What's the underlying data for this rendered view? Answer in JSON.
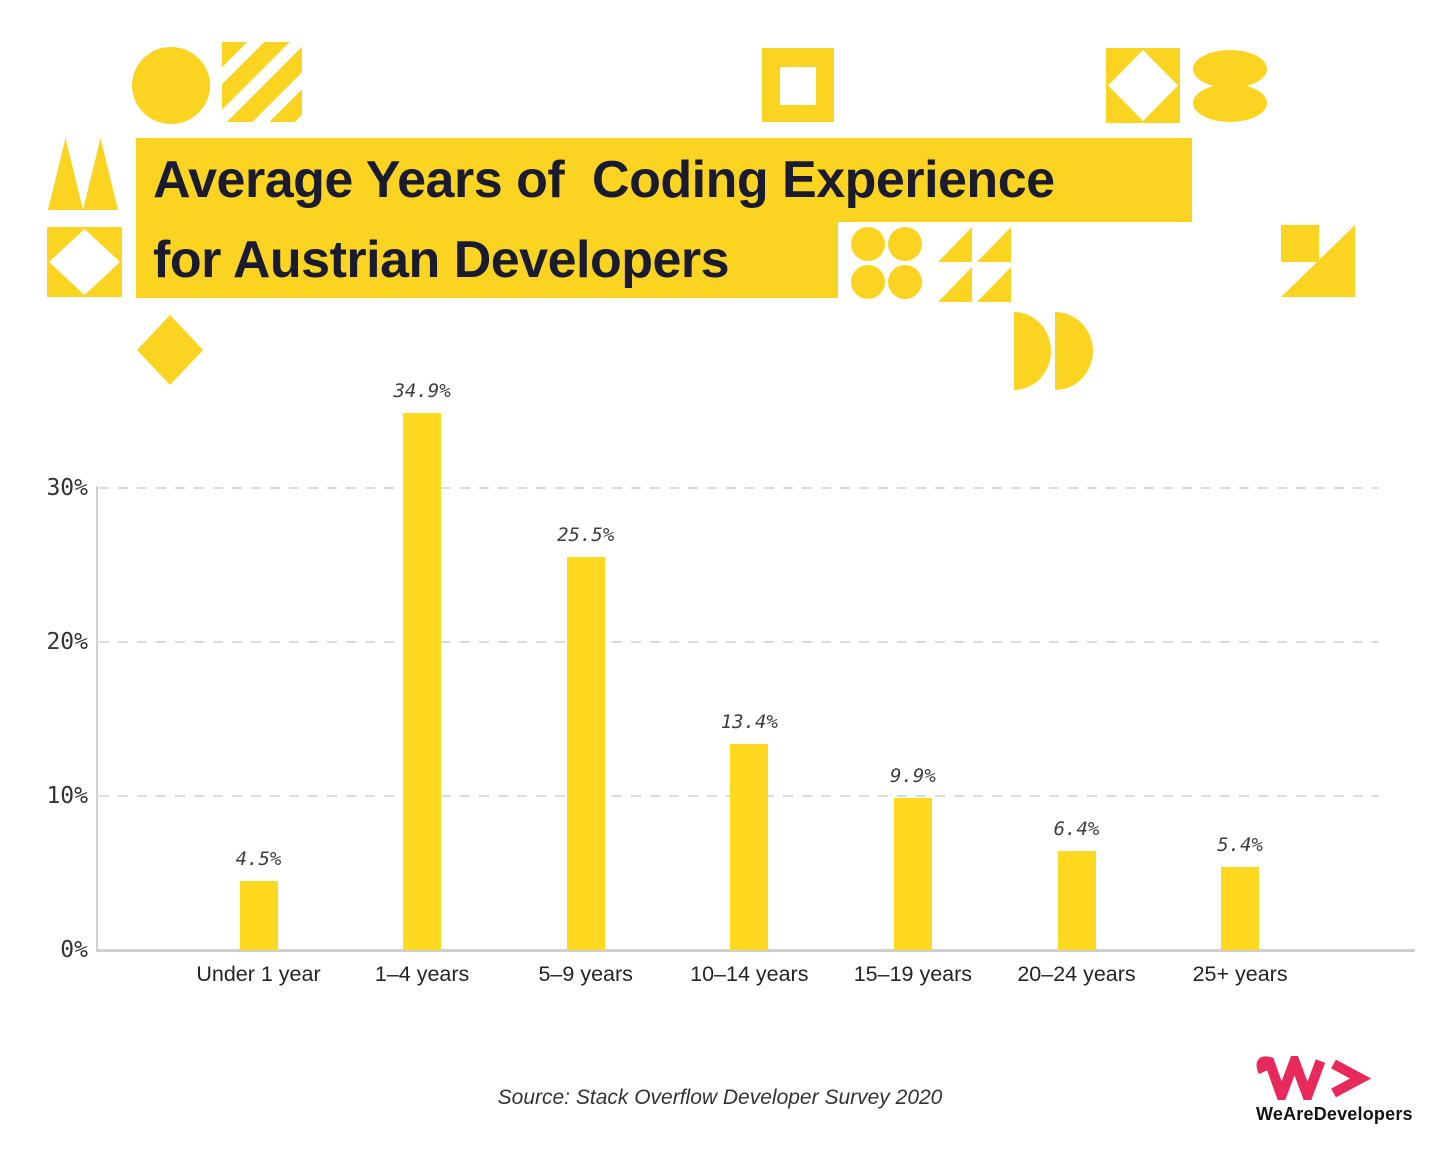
{
  "page": {
    "background": "#FFFFFF"
  },
  "title": {
    "line1": "Average Years of  Coding Experience",
    "line2": "for Austrian Developers",
    "highlight_color": "#FBD422",
    "text_color": "#1A1B2E"
  },
  "chart_data": {
    "type": "bar",
    "title": "Average Years of Coding Experience for Austrian Developers",
    "categories": [
      "Under 1 year",
      "1–4 years",
      "5–9 years",
      "10–14 years",
      "15–19 years",
      "20–24 years",
      "25+ years"
    ],
    "values": [
      4.5,
      34.9,
      25.5,
      13.4,
      9.9,
      6.4,
      5.4
    ],
    "value_labels": [
      "4.5%",
      "34.9%",
      "25.5%",
      "13.4%",
      "9.9%",
      "6.4%",
      "5.4%"
    ],
    "y_ticks": [
      {
        "value": 0,
        "label": "0%"
      },
      {
        "value": 10,
        "label": "10%"
      },
      {
        "value": 20,
        "label": "20%"
      },
      {
        "value": 30,
        "label": "30%"
      }
    ],
    "ylim": [
      0,
      36
    ],
    "xlabel": "",
    "ylabel": "",
    "grid": "horizontal-dashed",
    "legend": "none",
    "bar_color": "#FFD91F"
  },
  "source": {
    "text": "Source: Stack Overflow Developer Survey 2020"
  },
  "logo": {
    "name": "WeAreDevelopers",
    "wordmark": "WeAreDevelopers",
    "mark": "W>",
    "mark_color": "#E8295B",
    "text_color": "#141414"
  }
}
